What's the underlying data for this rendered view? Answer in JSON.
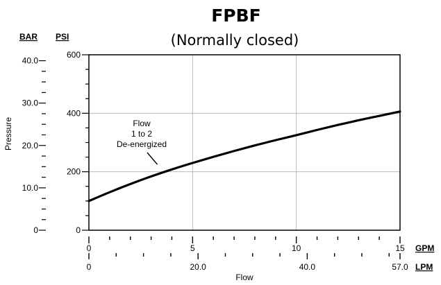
{
  "chart_data": {
    "type": "line",
    "title": "FPBF",
    "subtitle": "(Normally closed)",
    "xlabel": "Flow",
    "ylabel": "Pressure",
    "primary_x_axis": {
      "unit": "GPM",
      "range": [
        0,
        15
      ],
      "ticks": [
        0,
        5,
        10,
        15
      ],
      "tick_labels": [
        "0",
        "5",
        "10",
        "15"
      ]
    },
    "secondary_x_axis": {
      "unit": "LPM",
      "range": [
        0,
        57
      ],
      "tick_labels": [
        "0",
        "20.0",
        "40.0",
        "57.0"
      ],
      "tick_values": [
        0,
        20,
        40,
        57
      ]
    },
    "primary_y_axis": {
      "unit": "PSI",
      "range": [
        0,
        600
      ],
      "ticks": [
        0,
        200,
        400,
        600
      ],
      "tick_labels": [
        "0",
        "200",
        "400",
        "600"
      ]
    },
    "secondary_y_axis": {
      "unit": "BAR",
      "range": [
        0,
        41.4
      ],
      "tick_labels": [
        "0",
        "10.0",
        "20.0",
        "30.0",
        "40.0"
      ],
      "tick_values": [
        0,
        10,
        20,
        30,
        40
      ]
    },
    "grid": true,
    "series": [
      {
        "x": [
          0,
          1,
          2,
          3,
          4,
          5,
          6,
          7,
          8,
          9,
          10,
          11,
          12,
          13,
          14,
          15
        ],
        "y": [
          100,
          130,
          158,
          184,
          208,
          230,
          251,
          271,
          290,
          308,
          325,
          343,
          360,
          376,
          391,
          406
        ]
      }
    ],
    "annotation": {
      "lines": [
        "Flow",
        "1 to 2",
        "De-energized"
      ],
      "points_to": {
        "x": 3.3,
        "y": 220
      }
    }
  }
}
